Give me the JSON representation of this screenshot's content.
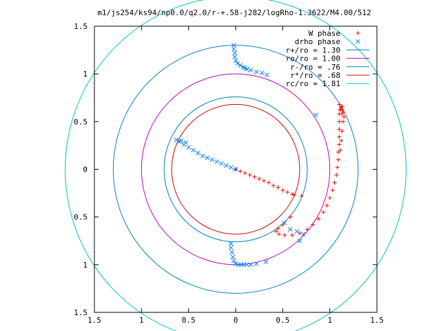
{
  "chart_data": {
    "type": "scatter",
    "title": "m1/js254/ks94/np0.0/q2.0/r-+.58-j282/logRho-1.3622/M4.00/512",
    "xlabel": "",
    "ylabel": "",
    "xlim": [
      -1.5,
      1.5
    ],
    "ylim": [
      -1.5,
      1.5
    ],
    "x_ticks": [
      -1.5,
      -1,
      -0.5,
      0,
      0.5,
      1,
      1.5
    ],
    "x_tick_labels": [
      "1.5",
      "1",
      "0.5",
      "0",
      "0.5",
      "1",
      "1.5"
    ],
    "y_ticks": [
      1.5,
      1,
      0.5,
      0,
      -0.5,
      -1,
      -1.5
    ],
    "y_tick_labels": [
      "1.5",
      "1",
      "0.5",
      "0",
      "0.5",
      "1",
      "1.5"
    ],
    "grid": false,
    "legend_position": "top-right",
    "circles": [
      {
        "name": "r+/ro = 1.30",
        "radius": 1.3,
        "color": "#0080c0"
      },
      {
        "name": "ro/ro = 1.00",
        "radius": 1.0,
        "color": "#c000c0"
      },
      {
        "name": "r-/ro = .76",
        "radius": 0.76,
        "color": "#0080c0"
      },
      {
        "name": "r*/ro = .68",
        "radius": 0.68,
        "color": "#d00000"
      },
      {
        "name": "rc/ro = 1.81",
        "radius": 1.81,
        "color": "#00c0c0"
      }
    ],
    "series": [
      {
        "name": "W phase",
        "marker": "plus",
        "color": "#ff0000",
        "points": [
          [
            0.0,
            0.0
          ],
          [
            0.05,
            -0.02
          ],
          [
            0.1,
            -0.04
          ],
          [
            0.15,
            -0.06
          ],
          [
            0.2,
            -0.08
          ],
          [
            0.25,
            -0.1
          ],
          [
            0.3,
            -0.12
          ],
          [
            0.35,
            -0.14
          ],
          [
            0.4,
            -0.17
          ],
          [
            0.45,
            -0.19
          ],
          [
            0.5,
            -0.22
          ],
          [
            0.55,
            -0.24
          ],
          [
            0.6,
            -0.26
          ],
          [
            0.62,
            -0.27
          ],
          [
            0.7,
            -0.28
          ],
          [
            0.58,
            -0.5
          ],
          [
            0.5,
            -0.58
          ],
          [
            0.45,
            -0.62
          ],
          [
            0.43,
            -0.65
          ],
          [
            0.46,
            -0.68
          ],
          [
            0.52,
            -0.69
          ],
          [
            0.6,
            -0.69
          ],
          [
            0.68,
            -0.67
          ],
          [
            0.76,
            -0.63
          ],
          [
            0.82,
            -0.58
          ],
          [
            0.88,
            -0.52
          ],
          [
            0.93,
            -0.45
          ],
          [
            0.97,
            -0.38
          ],
          [
            1.0,
            -0.3
          ],
          [
            1.03,
            -0.22
          ],
          [
            1.05,
            -0.14
          ],
          [
            1.07,
            -0.06
          ],
          [
            1.08,
            0.02
          ],
          [
            1.09,
            0.1
          ],
          [
            1.09,
            0.18
          ],
          [
            1.1,
            0.26
          ],
          [
            1.1,
            0.34
          ],
          [
            1.1,
            0.42
          ],
          [
            1.1,
            0.5
          ],
          [
            1.1,
            0.58
          ],
          [
            1.11,
            0.63
          ],
          [
            1.12,
            0.65
          ],
          [
            1.13,
            0.66
          ],
          [
            1.13,
            0.63
          ],
          [
            1.14,
            0.6
          ],
          [
            1.15,
            0.55
          ],
          [
            1.14,
            0.5
          ],
          [
            1.13,
            0.4
          ],
          [
            1.12,
            0.3
          ],
          [
            1.11,
            0.2
          ],
          [
            1.1,
            0.68
          ],
          [
            1.11,
            0.62
          ],
          [
            1.13,
            0.58
          ]
        ]
      },
      {
        "name": "drho phase",
        "marker": "cross",
        "color": "#0080ff",
        "points": [
          [
            0.0,
            0.0
          ],
          [
            -0.05,
            0.02
          ],
          [
            -0.1,
            0.04
          ],
          [
            -0.15,
            0.06
          ],
          [
            -0.2,
            0.08
          ],
          [
            -0.25,
            0.1
          ],
          [
            -0.3,
            0.12
          ],
          [
            -0.35,
            0.14
          ],
          [
            -0.4,
            0.17
          ],
          [
            -0.45,
            0.2
          ],
          [
            -0.5,
            0.23
          ],
          [
            -0.55,
            0.26
          ],
          [
            -0.6,
            0.29
          ],
          [
            -0.63,
            0.31
          ],
          [
            -0.58,
            0.3
          ],
          [
            -0.53,
            0.28
          ],
          [
            -0.02,
            1.3
          ],
          [
            -0.02,
            1.26
          ],
          [
            -0.01,
            1.22
          ],
          [
            -0.01,
            1.18
          ],
          [
            0.0,
            1.14
          ],
          [
            0.02,
            1.11
          ],
          [
            0.05,
            1.09
          ],
          [
            0.08,
            1.07
          ],
          [
            0.1,
            1.06
          ],
          [
            0.12,
            1.05
          ],
          [
            0.16,
            1.04
          ],
          [
            0.22,
            1.02
          ],
          [
            0.28,
            1.01
          ],
          [
            0.33,
            0.99
          ],
          [
            0.85,
            0.57
          ],
          [
            -0.05,
            -0.78
          ],
          [
            -0.05,
            -0.82
          ],
          [
            -0.04,
            -0.87
          ],
          [
            -0.03,
            -0.92
          ],
          [
            -0.02,
            -0.96
          ],
          [
            0.0,
            -0.99
          ],
          [
            0.03,
            -1.0
          ],
          [
            0.06,
            -1.0
          ],
          [
            0.09,
            -1.0
          ],
          [
            0.12,
            -1.0
          ],
          [
            0.16,
            -1.0
          ],
          [
            0.22,
            -0.99
          ],
          [
            0.32,
            -0.97
          ],
          [
            0.52,
            -0.56
          ],
          [
            0.58,
            -0.63
          ],
          [
            0.65,
            -0.65
          ],
          [
            0.68,
            -0.75
          ],
          [
            0.72,
            -0.68
          ]
        ]
      }
    ]
  }
}
